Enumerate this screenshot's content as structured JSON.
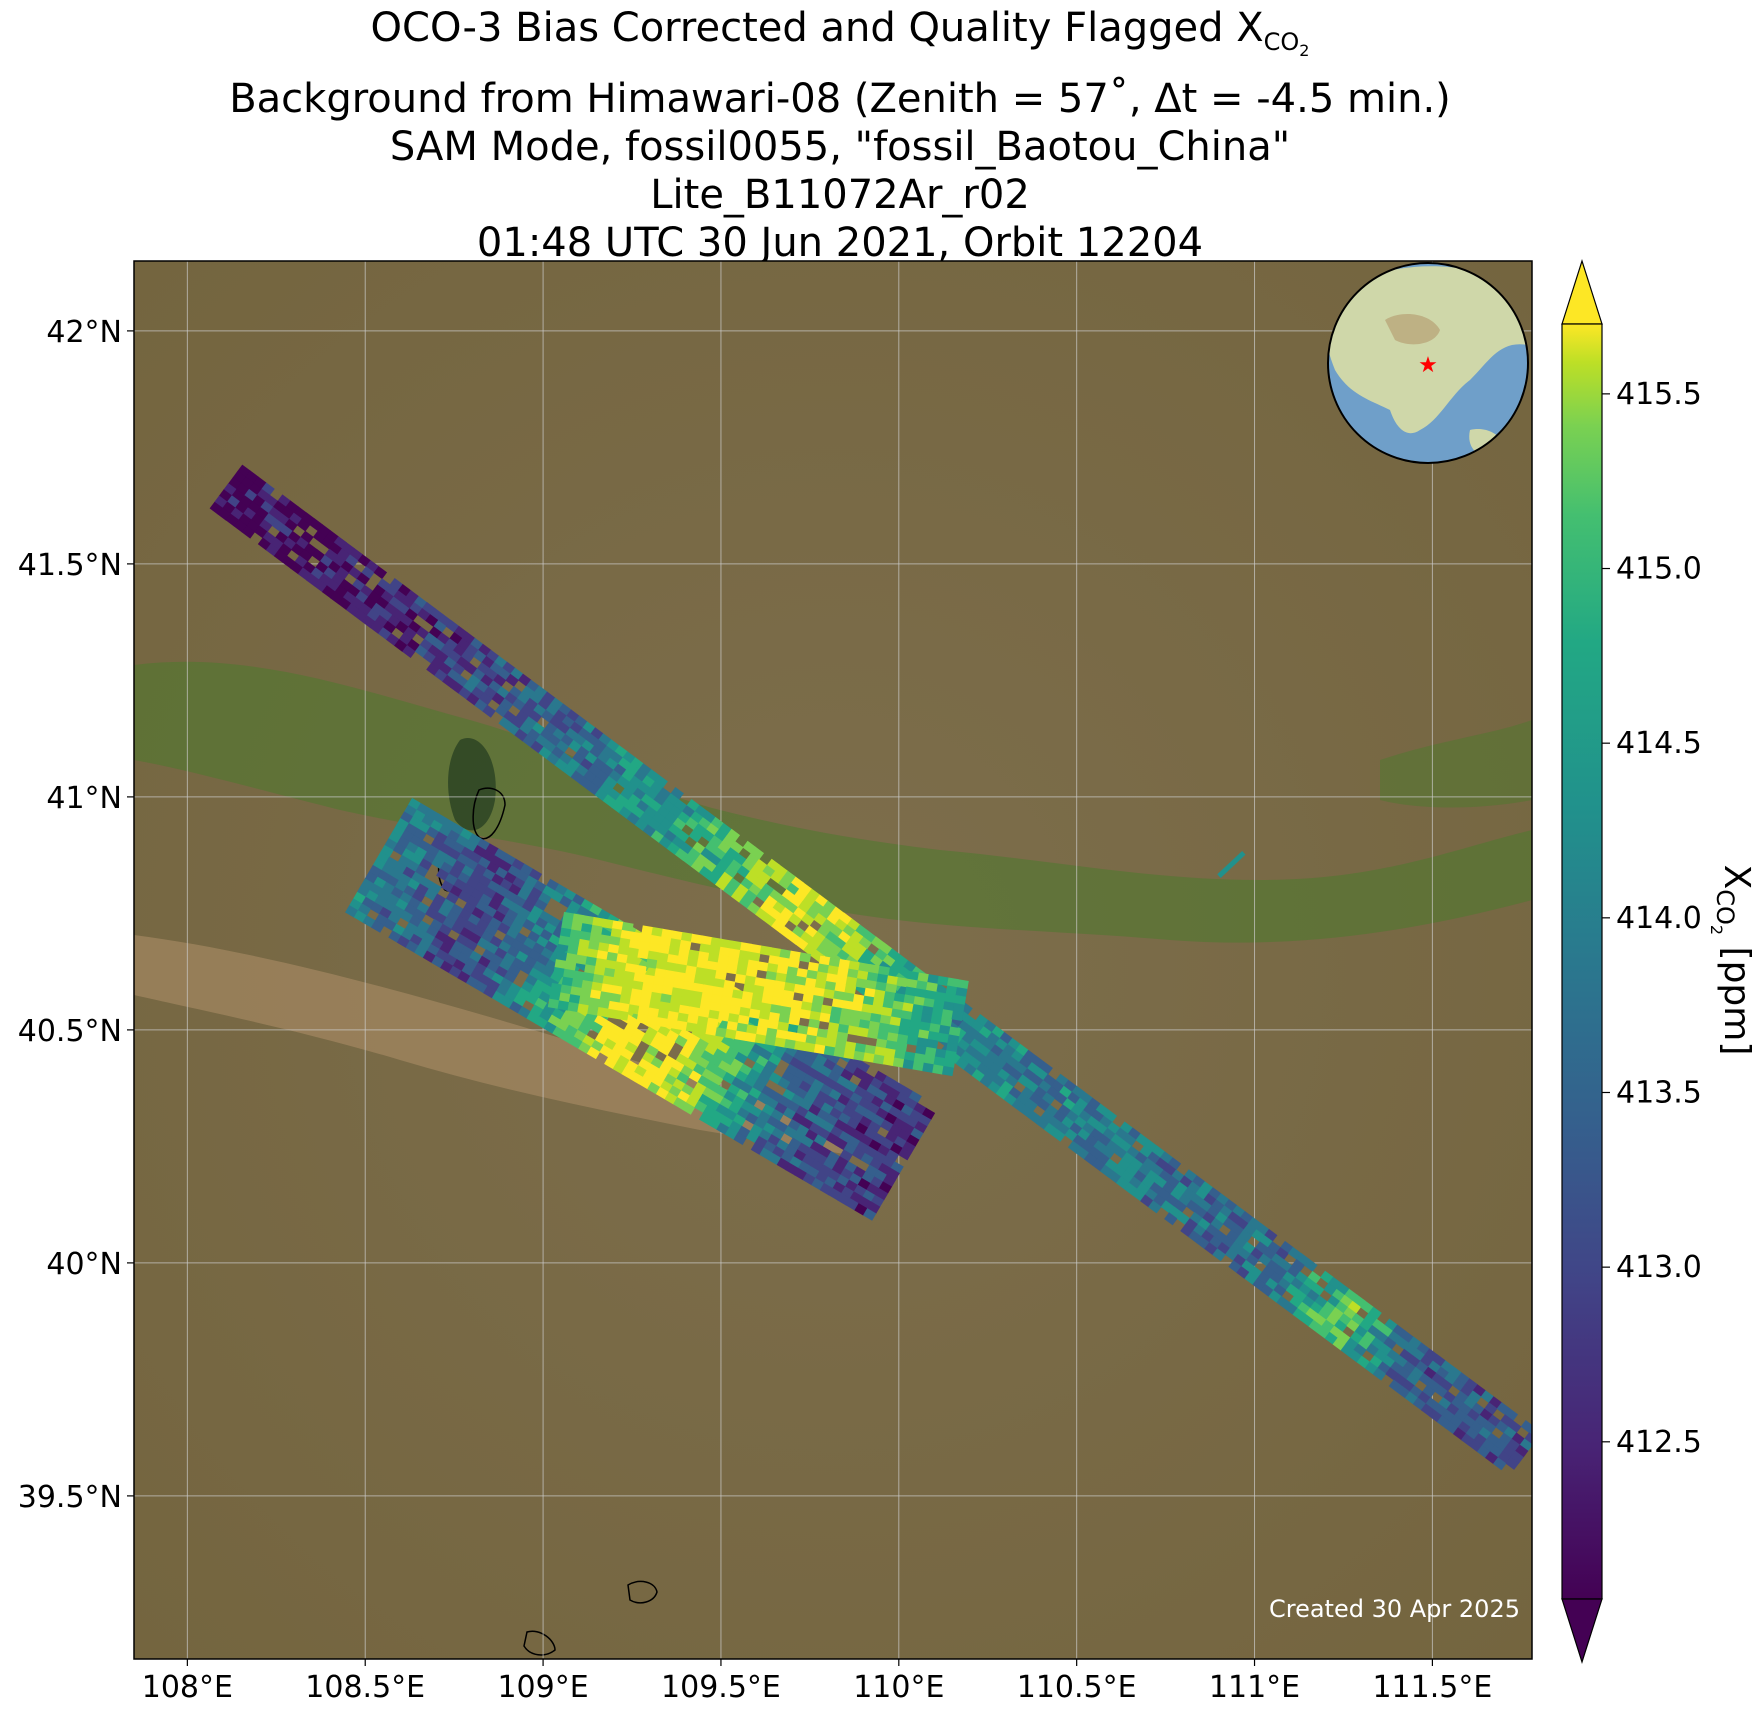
{
  "title": {
    "line1_main": "OCO-3 Bias Corrected and Quality Flagged X",
    "line1_sub": "CO",
    "line1_subsub": "2",
    "line2": "Background from Himawari-08 (Zenith = 57˚, Δt = -4.5 min.)",
    "line3": "SAM Mode, fossil0055, \"fossil_Baotou_China\"",
    "line4": "Lite_B11072Ar_r02",
    "line5": "01:48 UTC 30 Jun 2021, Orbit 12204"
  },
  "map": {
    "lon_ticks": [
      "108°E",
      "108.5°E",
      "109°E",
      "109.5°E",
      "110°E",
      "110.5°E",
      "111°E",
      "111.5°E"
    ],
    "lon_values": [
      108.0,
      108.5,
      109.0,
      109.5,
      110.0,
      110.5,
      111.0,
      111.5
    ],
    "lat_ticks": [
      "42°N",
      "41.5°N",
      "41°N",
      "40.5°N",
      "40°N",
      "39.5°N"
    ],
    "lat_values": [
      42.0,
      41.5,
      41.0,
      40.5,
      40.0,
      39.5
    ],
    "lon_range": [
      107.85,
      111.78
    ],
    "lat_range": [
      39.15,
      42.15
    ],
    "background_colors": {
      "land": "#7a6a48",
      "vegetation": "#4d7a2e",
      "river_plain": "#a88a64",
      "grid": "#cccccc"
    },
    "inset_globe": {
      "ocean": "#6f9fc9",
      "land": "#cfd7a9",
      "marker": "#ff0000",
      "marker_icon": "red-star-icon"
    },
    "credit": "Created 30 Apr 2025"
  },
  "colorbar": {
    "label_main": "X",
    "label_sub": "CO",
    "label_subsub": "2",
    "label_unit": " [ppm]",
    "tick_labels": [
      "412.5",
      "413.0",
      "413.5",
      "414.0",
      "414.5",
      "415.0",
      "415.5"
    ],
    "tick_values": [
      412.5,
      413.0,
      413.5,
      414.0,
      414.5,
      415.0,
      415.5
    ],
    "vmin": 412.05,
    "vmax": 415.7,
    "colormap": "viridis",
    "extend": "both"
  },
  "chart_data": {
    "type": "heatmap",
    "description_variable": "XCO2",
    "swaths": [
      {
        "name": "",
        "from": [
          108.12,
          41.66
        ],
        "to": [
          111.78,
          39.58
        ],
        "values_along_track": [
          412.1,
          412.2,
          412.3,
          412.5,
          412.8,
          413.1,
          413.4,
          413.8,
          414.3,
          415.1,
          415.5,
          414.6,
          413.9,
          413.7,
          413.6,
          413.5,
          413.4,
          413.3,
          413.5,
          414.8,
          413.2,
          413.0,
          412.9
        ]
      },
      {
        "name": "",
        "from": [
          108.55,
          40.87
        ],
        "to": [
          110.05,
          40.2
        ],
        "values_along_track": [
          413.6,
          413.2,
          412.8,
          413.5,
          414.6,
          415.6,
          415.5,
          414.2,
          413.1,
          412.8,
          412.6
        ]
      },
      {
        "name": "",
        "from": [
          109.05,
          40.65
        ],
        "to": [
          110.2,
          40.5
        ],
        "values_along_track": [
          414.5,
          415.6,
          415.7,
          415.6,
          415.4,
          414.8,
          414.1
        ]
      }
    ]
  }
}
